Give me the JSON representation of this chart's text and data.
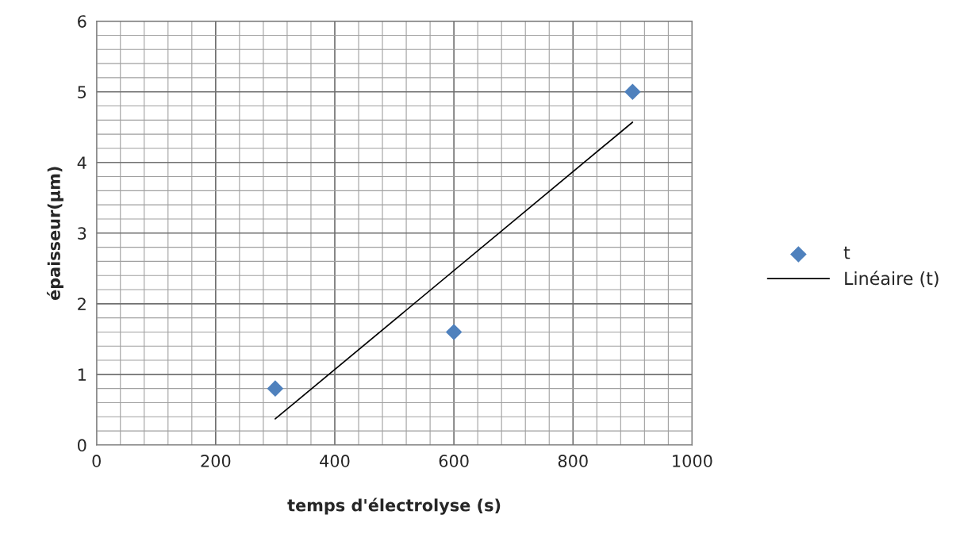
{
  "chart_data": {
    "type": "scatter",
    "xlabel": "temps d'électrolyse (s)",
    "ylabel": "épaisseur(μm)",
    "series": [
      {
        "name": "t",
        "color": "#4f81bd",
        "marker": "diamond",
        "x": [
          300,
          600,
          900
        ],
        "values": [
          0.8,
          1.6,
          5
        ]
      },
      {
        "name": "Linéaire (t)",
        "type": "line",
        "color": "#000000",
        "marker": "none",
        "line_style": "solid",
        "x": [
          300,
          900
        ],
        "values": [
          0.37,
          4.57
        ]
      }
    ],
    "xlim": [
      0,
      1000
    ],
    "xticks": [
      0,
      200,
      400,
      600,
      800,
      1000
    ],
    "ylim": [
      0,
      6
    ],
    "yticks": [
      0,
      1,
      2,
      3,
      4,
      5,
      6
    ],
    "grid": true,
    "legend": "right"
  }
}
